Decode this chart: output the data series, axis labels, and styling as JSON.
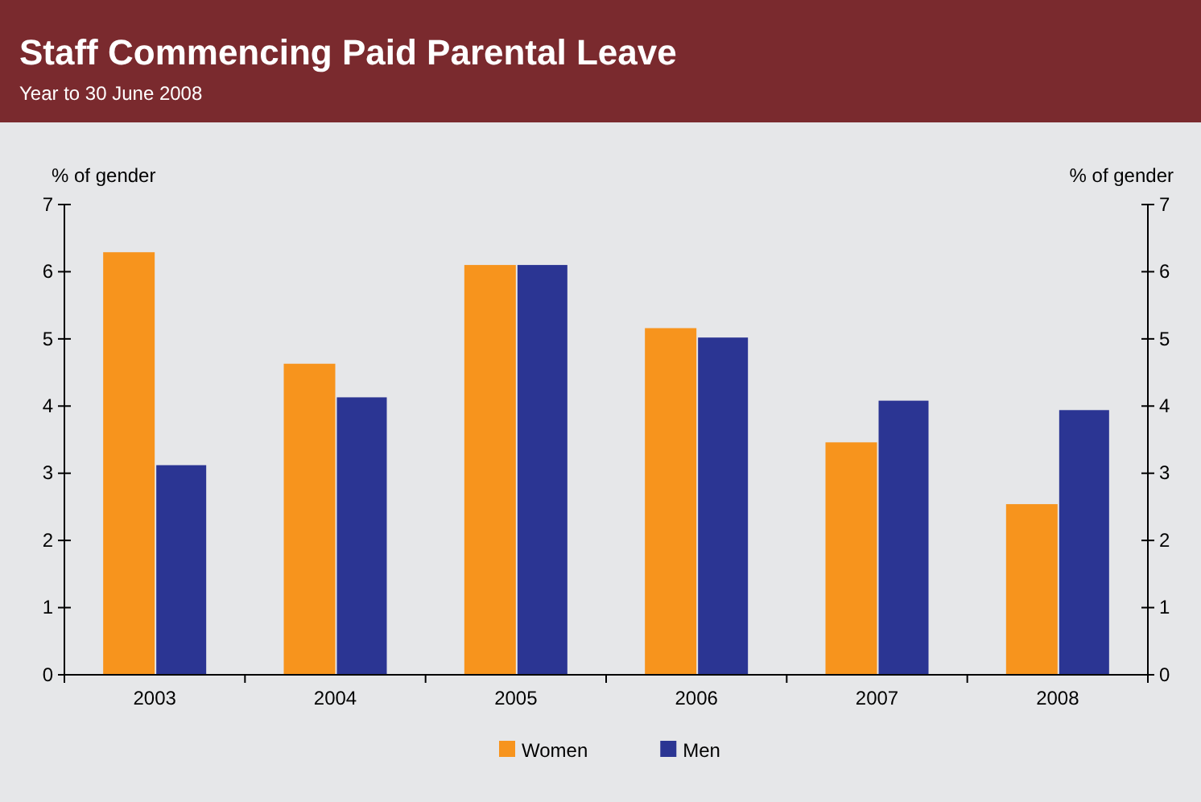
{
  "chart_data": {
    "type": "bar",
    "title": "Staff Commencing Paid Parental Leave",
    "subtitle": "Year to 30 June 2008",
    "ylabel": "% of gender",
    "y2label": "% of gender",
    "categories": [
      "2003",
      "2004",
      "2005",
      "2006",
      "2007",
      "2008"
    ],
    "series": [
      {
        "name": "Women",
        "color": "#f7941d",
        "values": [
          6.29,
          4.63,
          6.1,
          5.16,
          3.46,
          2.54
        ]
      },
      {
        "name": "Men",
        "color": "#2b3593",
        "values": [
          3.12,
          4.13,
          6.1,
          5.02,
          4.08,
          3.94
        ]
      }
    ],
    "ylim": [
      0,
      7
    ],
    "yticks": [
      0,
      1,
      2,
      3,
      4,
      5,
      6,
      7
    ],
    "y2lim": [
      0,
      7
    ],
    "y2ticks": [
      0,
      1,
      2,
      3,
      4,
      5,
      6,
      7
    ],
    "grid": false,
    "legend": "bottom"
  }
}
